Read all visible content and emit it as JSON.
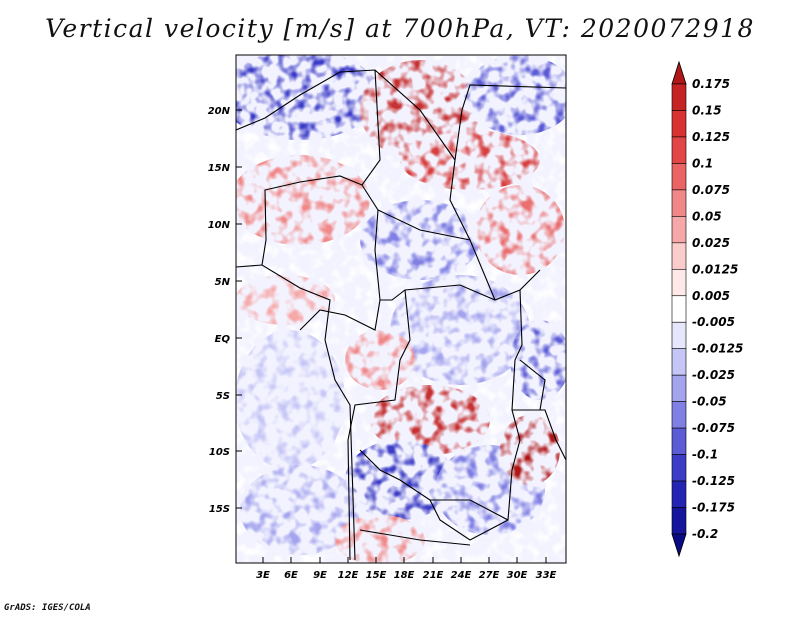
{
  "title": "Vertical velocity [m/s] at 700hPa, VT: 2020072918",
  "credit": "GrADS: IGES/COLA",
  "map": {
    "region": "Central Africa",
    "lat_labels": [
      "20N",
      "15N",
      "10N",
      "5N",
      "EQ",
      "5S",
      "10S",
      "15S"
    ],
    "lon_labels": [
      "3E",
      "6E",
      "9E",
      "12E",
      "15E",
      "18E",
      "21E",
      "24E",
      "27E",
      "30E",
      "33E"
    ]
  },
  "colorbar": {
    "labels": [
      "0.175",
      "0.15",
      "0.125",
      "0.1",
      "0.075",
      "0.05",
      "0.025",
      "0.0125",
      "0.005",
      "-0.005",
      "-0.0125",
      "-0.025",
      "-0.05",
      "-0.075",
      "-0.1",
      "-0.125",
      "-0.175",
      "-0.2"
    ],
    "colors": [
      "#b01818",
      "#c52424",
      "#d83232",
      "#e24646",
      "#ea6464",
      "#f08888",
      "#f6a8a8",
      "#fbcccc",
      "#fee8e8",
      "#ffffff",
      "#e6e6fc",
      "#c6c6f6",
      "#a4a4ee",
      "#8080e4",
      "#5c5cd6",
      "#3c3cc6",
      "#2424b4",
      "#14149c",
      "#0a0a84"
    ]
  }
}
